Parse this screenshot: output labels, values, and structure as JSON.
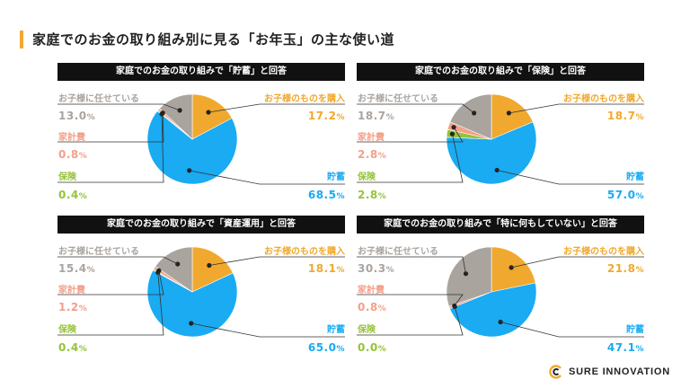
{
  "title": "家庭でのお金の取り組み別に見る「お年玉」の主な使い道",
  "logo": {
    "text": "SURE INNOVATION"
  },
  "colors": {
    "accent": "#f0a92e",
    "kodomo_buy": "#f0a92e",
    "chokin": "#1aabf2",
    "hoken": "#97c23b",
    "kakeihi": "#f3a08a",
    "makaseru": "#aaa49f",
    "header_bg": "#111111"
  },
  "chart_data": [
    {
      "type": "pie",
      "title": "家庭でのお金の取り組みで「貯蓄」と回答",
      "slices": [
        {
          "label": "お子様のものを購入",
          "value": 17.2
        },
        {
          "label": "貯蓄",
          "value": 68.5
        },
        {
          "label": "保険",
          "value": 0.4
        },
        {
          "label": "家計費",
          "value": 0.8
        },
        {
          "label": "お子様に任せている",
          "value": 13.0
        }
      ],
      "unit": "%"
    },
    {
      "type": "pie",
      "title": "家庭でのお金の取り組みで「保険」と回答",
      "slices": [
        {
          "label": "お子様のものを購入",
          "value": 18.7
        },
        {
          "label": "貯蓄",
          "value": 57.0
        },
        {
          "label": "保険",
          "value": 2.8
        },
        {
          "label": "家計費",
          "value": 2.8
        },
        {
          "label": "お子様に任せている",
          "value": 18.7
        }
      ],
      "unit": "%"
    },
    {
      "type": "pie",
      "title": "家庭でのお金の取り組みで「資産運用」と回答",
      "slices": [
        {
          "label": "お子様のものを購入",
          "value": 18.1
        },
        {
          "label": "貯蓄",
          "value": 65.0
        },
        {
          "label": "保険",
          "value": 0.4
        },
        {
          "label": "家計費",
          "value": 1.2
        },
        {
          "label": "お子様に任せている",
          "value": 15.4
        }
      ],
      "unit": "%"
    },
    {
      "type": "pie",
      "title": "家庭でのお金の取り組みで「特に何もしていない」と回答",
      "slices": [
        {
          "label": "お子様のものを購入",
          "value": 21.8
        },
        {
          "label": "貯蓄",
          "value": 47.1
        },
        {
          "label": "保険",
          "value": 0.0
        },
        {
          "label": "家計費",
          "value": 0.8
        },
        {
          "label": "お子様に任せている",
          "value": 30.3
        }
      ],
      "unit": "%"
    }
  ]
}
